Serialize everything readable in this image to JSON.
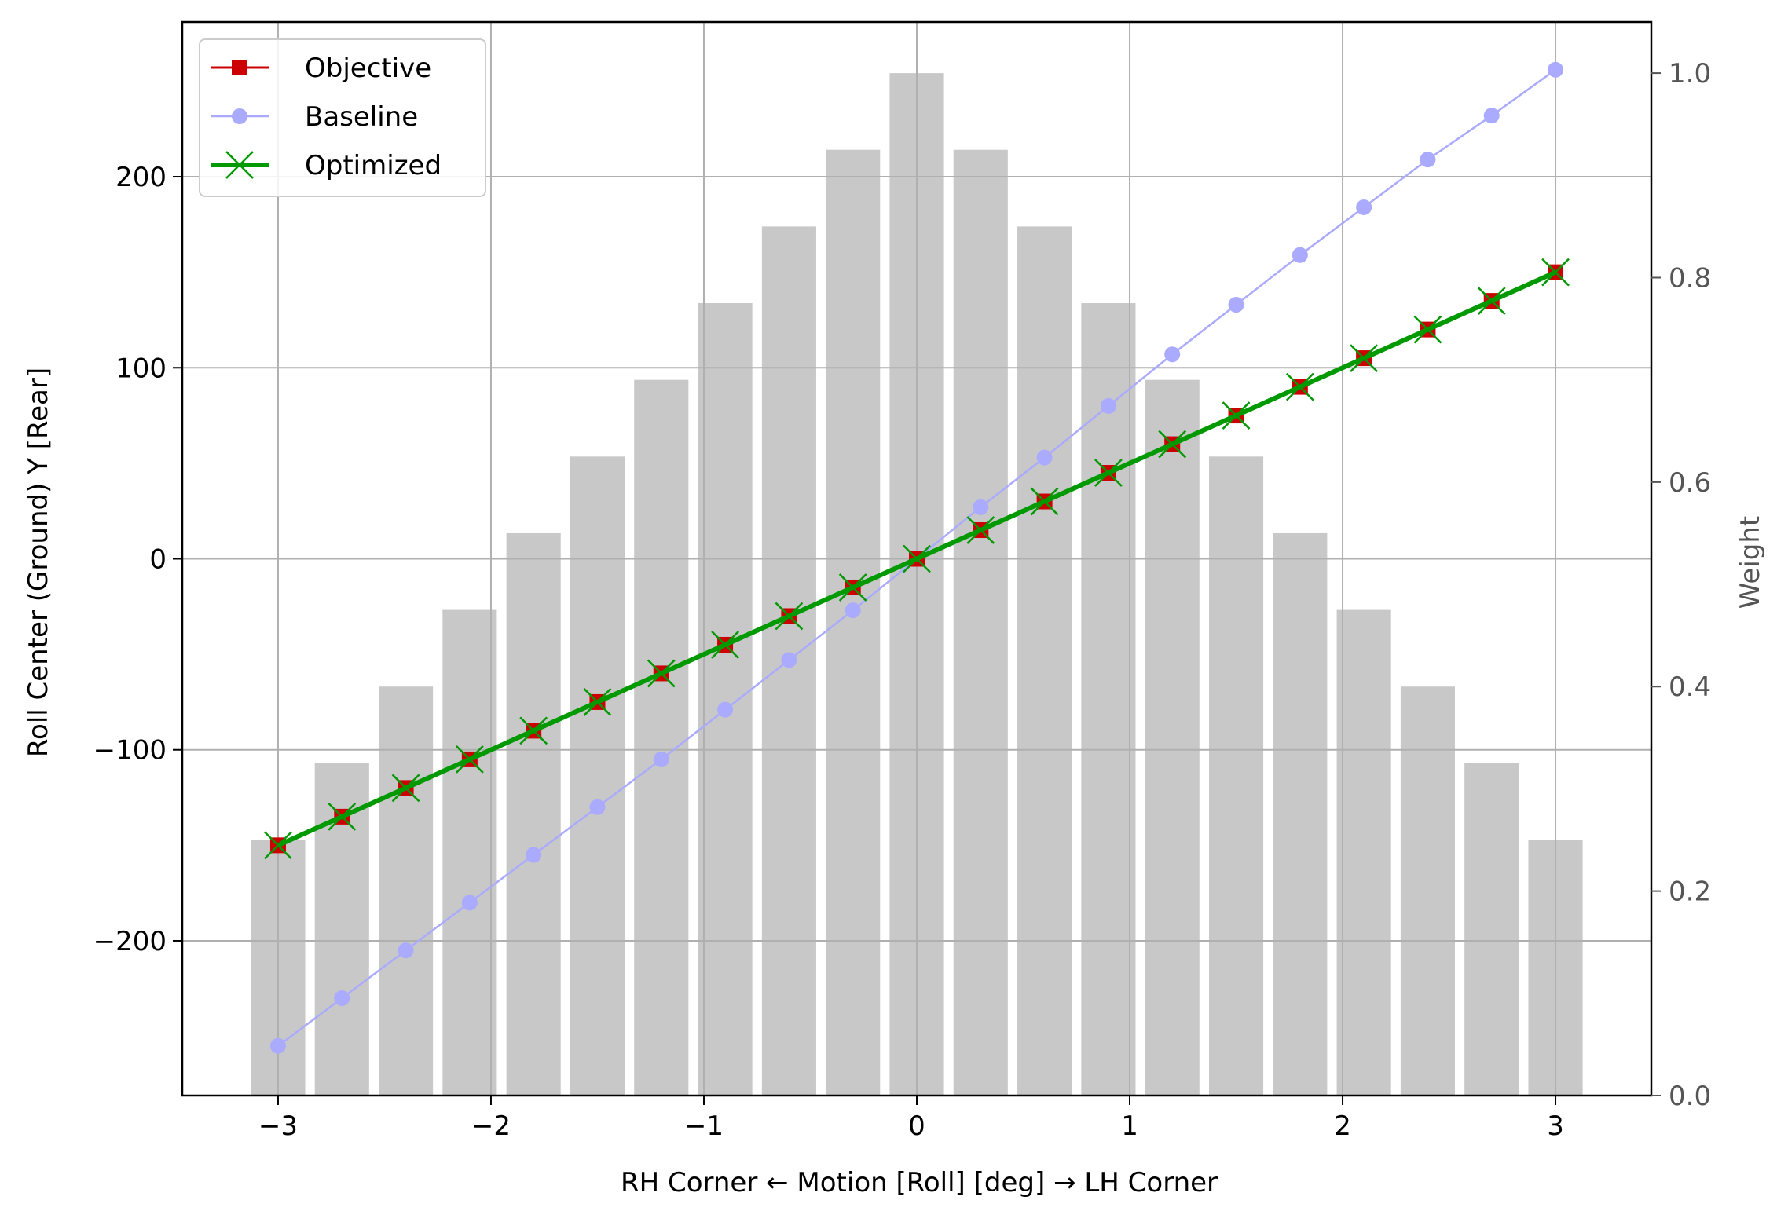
{
  "chart_data": {
    "type": "line",
    "xlabel": "RH Corner ← Motion [Roll] [deg] → LH Corner",
    "ylabel": "Roll Center (Ground) Y [Rear]",
    "y2label": "Weight",
    "xlim": [
      -3.45,
      3.45
    ],
    "ylim": [
      -281,
      281
    ],
    "y2lim": [
      0.0,
      1.05
    ],
    "grid": true,
    "legend_position": "top-left",
    "x_ticks": [
      -3,
      -2,
      -1,
      0,
      1,
      2,
      3
    ],
    "x_tick_labels": [
      "−3",
      "−2",
      "−1",
      "0",
      "1",
      "2",
      "3"
    ],
    "y_ticks": [
      -200,
      -100,
      0,
      100,
      200
    ],
    "y_tick_labels": [
      "−200",
      "−100",
      "0",
      "100",
      "200"
    ],
    "y2_ticks": [
      0.0,
      0.2,
      0.4,
      0.6,
      0.8,
      1.0
    ],
    "y2_tick_labels": [
      "0.0",
      "0.2",
      "0.4",
      "0.6",
      "0.8",
      "1.0"
    ],
    "x": [
      -3.0,
      -2.7,
      -2.4,
      -2.1,
      -1.8,
      -1.5,
      -1.2,
      -0.9,
      -0.6,
      -0.3,
      0.0,
      0.3,
      0.6,
      0.9,
      1.2,
      1.5,
      1.8,
      2.1,
      2.4,
      2.7,
      3.0
    ],
    "weights": {
      "axis": "right",
      "color": "#c8c8c8",
      "values": [
        0.25,
        0.325,
        0.4,
        0.475,
        0.55,
        0.625,
        0.7,
        0.775,
        0.85,
        0.925,
        1.0,
        0.925,
        0.85,
        0.775,
        0.7,
        0.625,
        0.55,
        0.475,
        0.4,
        0.325,
        0.25
      ]
    },
    "series": [
      {
        "name": "Objective",
        "color": "#cc0000",
        "marker": "square",
        "values": [
          -150,
          -135,
          -120,
          -105,
          -90,
          -75,
          -60,
          -45,
          -30,
          -15,
          0,
          15,
          30,
          45,
          60,
          75,
          90,
          105,
          120,
          135,
          150
        ]
      },
      {
        "name": "Baseline",
        "color": "#aaaaff",
        "marker": "circle",
        "values": [
          -255,
          -230,
          -205,
          -180,
          -155,
          -130,
          -105,
          -79,
          -53,
          -27,
          0,
          27,
          53,
          80,
          107,
          133,
          159,
          184,
          209,
          232,
          256
        ]
      },
      {
        "name": "Optimized",
        "color": "#009900",
        "marker": "x",
        "values": [
          -150,
          -135,
          -120,
          -105,
          -90,
          -75,
          -60,
          -45,
          -30,
          -15,
          0,
          15,
          30,
          45,
          60,
          75,
          90,
          105,
          120,
          135,
          150
        ]
      }
    ]
  }
}
